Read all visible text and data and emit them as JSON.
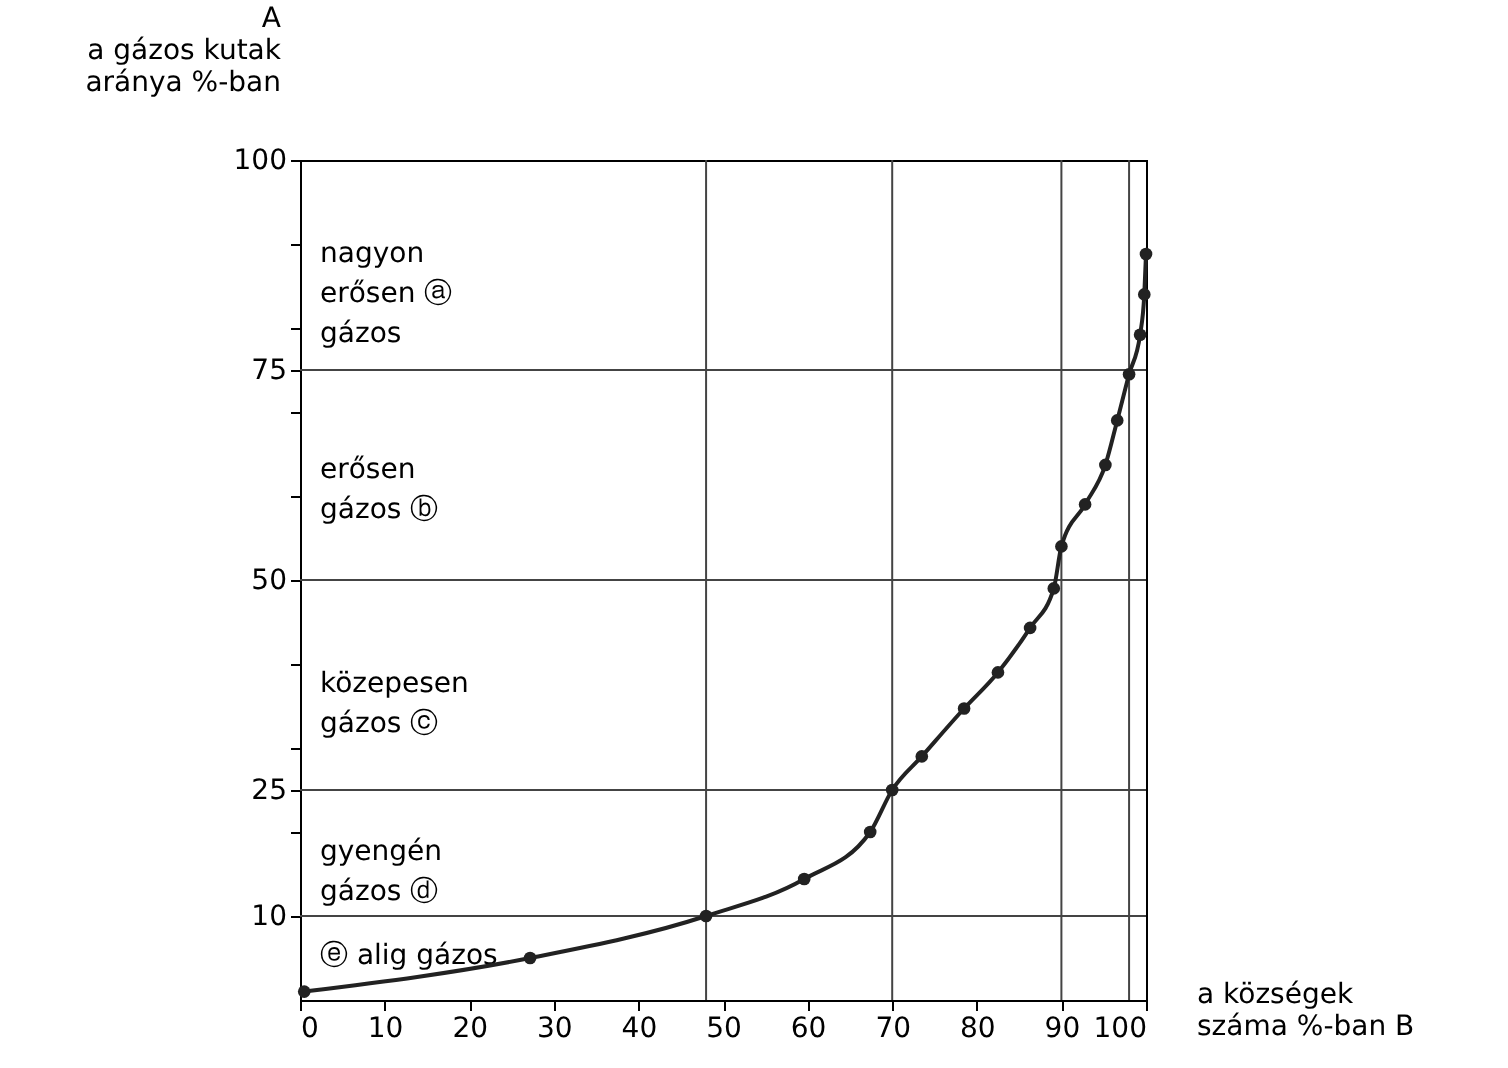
{
  "chart_data": {
    "type": "line",
    "xlabel": "a községek\nszáma %-ban   B",
    "ylabel": "A\na gázos kutak\naránya %-ban",
    "x": [
      0.5,
      27.2,
      48,
      59.6,
      67.4,
      70,
      73.5,
      78.5,
      82.5,
      86.3,
      89.1,
      90,
      92.8,
      95.2,
      96.6,
      98,
      99.3,
      99.8,
      100
    ],
    "series": [
      {
        "color": "#222222",
        "values": [
          1,
          5,
          10,
          14.4,
          20,
          25,
          29,
          34.7,
          39,
          44.3,
          49,
          54,
          59,
          63.7,
          69,
          74.5,
          79.2,
          84,
          88.8
        ]
      }
    ],
    "xlim": [
      0,
      100
    ],
    "ylim": [
      0,
      100
    ],
    "xticks": [
      0,
      10,
      20,
      30,
      40,
      50,
      60,
      70,
      80,
      90,
      100
    ],
    "yticks": [
      10,
      {
        "value": 20,
        "label": null
      },
      25,
      {
        "value": 30,
        "label": null
      },
      {
        "value": 40,
        "label": null
      },
      50,
      {
        "value": 60,
        "label": null
      },
      {
        "value": 70,
        "label": null
      },
      75,
      {
        "value": 80,
        "label": null
      },
      {
        "value": 90,
        "label": null
      },
      100
    ],
    "ref_lines": [
      {
        "axis": "y",
        "value": 75,
        "label": null
      },
      {
        "axis": "y",
        "value": 50,
        "label": null
      },
      {
        "axis": "y",
        "value": 25,
        "label": null
      },
      {
        "axis": "y",
        "value": 10,
        "label": null
      },
      {
        "axis": "x",
        "value": 48,
        "label": null
      },
      {
        "axis": "x",
        "value": 70,
        "label": null
      },
      {
        "axis": "x",
        "value": 90,
        "label": null
      },
      {
        "axis": "x",
        "value": 98,
        "label": null
      }
    ],
    "annotations": [
      "nagyon\nerősen ⓐ\ngázos",
      "erősen\ngázos ⓑ",
      "közepesen\ngázos ⓒ",
      "gyengén\ngázos ⓓ",
      "ⓔ alig gázos"
    ],
    "marker": "circle",
    "line_style": "solid",
    "grid": false
  }
}
